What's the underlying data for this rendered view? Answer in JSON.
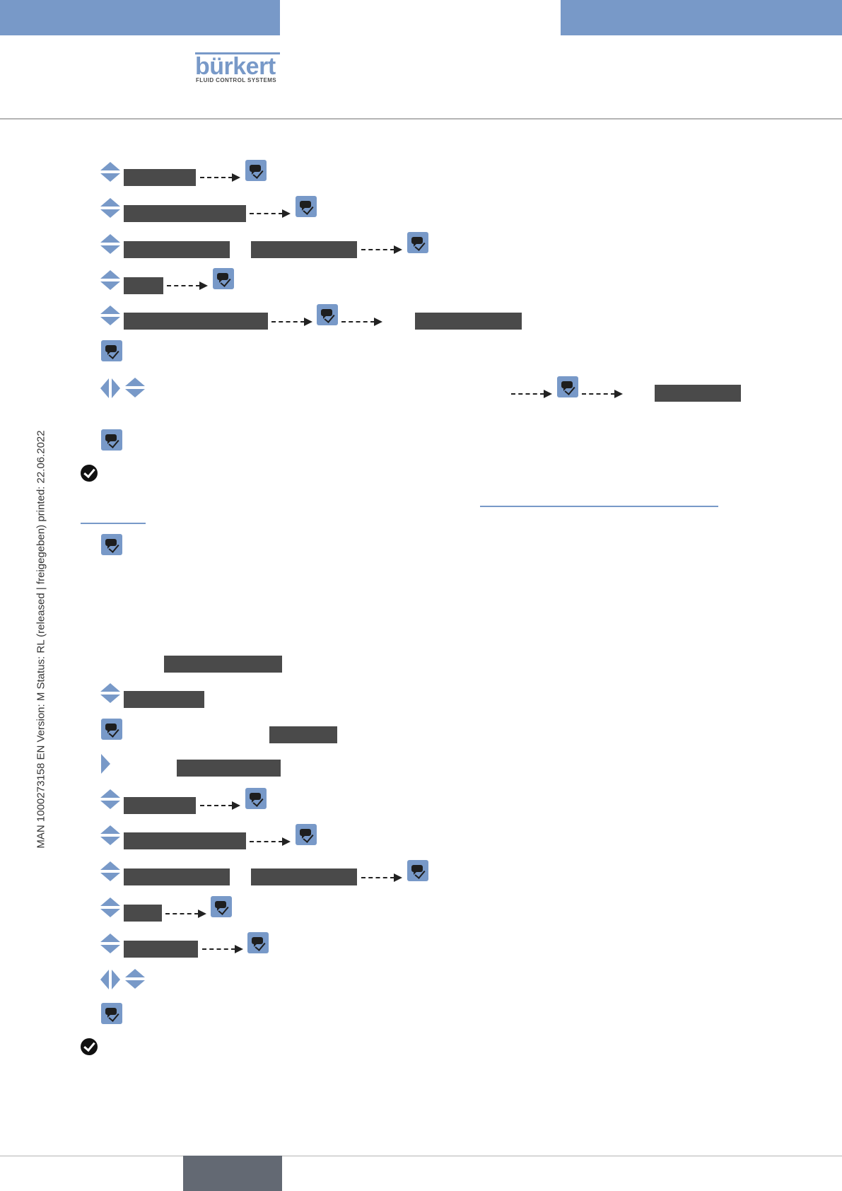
{
  "brand": {
    "name": "bürkert",
    "tagline": "FLUID CONTROL SYSTEMS",
    "accent_color": "#7899c8",
    "placeholder_color": "#4a4a4a"
  },
  "sidebar": {
    "text": "MAN  1000273158  EN  Version: M Status: RL (released | freigegeben)  printed: 22.06.2022"
  },
  "icons": {
    "ok_key": "ok-key-icon",
    "navigate_updown": "up-down-arrows-icon",
    "navigate_leftright": "left-right-arrows-icon",
    "navigate_right": "right-arrow-icon",
    "result_check": "check-badge-icon",
    "dashed_arrow": "dashed-arrow-icon"
  }
}
